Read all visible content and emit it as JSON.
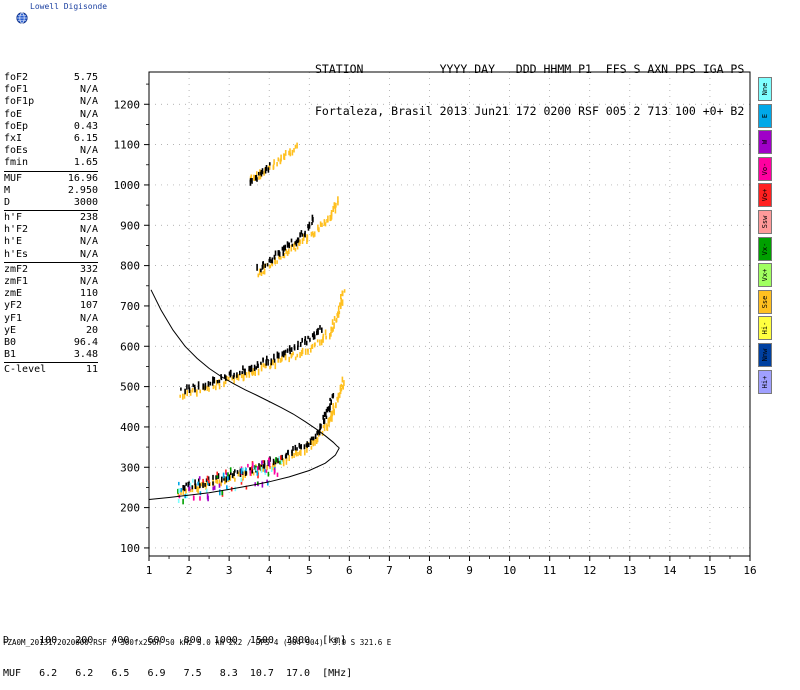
{
  "logo": {
    "text": "Lowell Digisonde"
  },
  "header": {
    "line1": "STATION           YYYY DAY   DDD HHMM P1  FFS S AXN PPS IGA PS",
    "line2": "Fortaleza, Brasil 2013 Jun21 172 0200 RSF 005 2 713 100 +0+ B2"
  },
  "params": [
    [
      {
        "label": "foF2",
        "value": "5.75"
      },
      {
        "label": "foF1",
        "value": "N/A"
      },
      {
        "label": "foF1p",
        "value": "N/A"
      },
      {
        "label": "foE",
        "value": "N/A"
      },
      {
        "label": "foEp",
        "value": "0.43"
      },
      {
        "label": "fxI",
        "value": "6.15"
      },
      {
        "label": "foEs",
        "value": "N/A"
      },
      {
        "label": "fmin",
        "value": "1.65"
      }
    ],
    [
      {
        "label": "MUF",
        "value": "16.96"
      },
      {
        "label": "M",
        "value": "2.950"
      },
      {
        "label": "D",
        "value": "3000"
      }
    ],
    [
      {
        "label": "h'F",
        "value": "238"
      },
      {
        "label": "h'F2",
        "value": "N/A"
      },
      {
        "label": "h'E",
        "value": "N/A"
      },
      {
        "label": "h'Es",
        "value": "N/A"
      }
    ],
    [
      {
        "label": "zmF2",
        "value": "332"
      },
      {
        "label": "zmF1",
        "value": "N/A"
      },
      {
        "label": "zmE",
        "value": "110"
      },
      {
        "label": "yF2",
        "value": "107"
      },
      {
        "label": "yF1",
        "value": "N/A"
      },
      {
        "label": "yE",
        "value": "20"
      },
      {
        "label": "B0",
        "value": "96.4"
      },
      {
        "label": "B1",
        "value": "3.48"
      }
    ],
    [
      {
        "label": "C-level",
        "value": "11"
      }
    ]
  ],
  "legend": [
    {
      "label": "Nne",
      "color": "#7fffff"
    },
    {
      "label": "E",
      "color": "#00a8e8"
    },
    {
      "label": "W",
      "color": "#a000c8"
    },
    {
      "label": "Vo-",
      "color": "#ff00a0"
    },
    {
      "label": "Vo+",
      "color": "#ff2020"
    },
    {
      "label": "Ssw",
      "color": "#ff9a9a"
    },
    {
      "label": "Vx-",
      "color": "#00a000"
    },
    {
      "label": "Vx+",
      "color": "#a0ff60"
    },
    {
      "label": "Sse",
      "color": "#ffc020"
    },
    {
      "label": "Hi-",
      "color": "#ffff40"
    },
    {
      "label": "Nnw",
      "color": "#0040a0"
    },
    {
      "label": "Hi+",
      "color": "#a0a0ff"
    }
  ],
  "table": {
    "line1": "D     100   200   400   600   800  1000  1500  3000  [km]",
    "line2": "MUF   6.2   6.2   6.5   6.9   7.5   8.3  10.7  17.0  [MHz]"
  },
  "footer": "FZA0M_2013172020000.RSF / 300fx256h 50 kHz 5.0 km 2x2 / DPS-4 (904-904)  3.9 S 321.6 E",
  "chart_data": {
    "type": "scatter",
    "xlim": [
      1,
      16
    ],
    "ylim": [
      80,
      1280
    ],
    "x_ticks": [
      1,
      2,
      3,
      4,
      5,
      6,
      7,
      8,
      9,
      10,
      11,
      12,
      13,
      14,
      15,
      16
    ],
    "y_ticks": [
      100,
      200,
      300,
      400,
      500,
      600,
      700,
      800,
      900,
      1000,
      1100,
      1200
    ],
    "grid": true,
    "profile": {
      "x": [
        1.05,
        1.3,
        1.6,
        1.9,
        2.2,
        2.5,
        2.8,
        3.1,
        3.4,
        3.7,
        4.0,
        4.3,
        4.6,
        4.9,
        5.2,
        5.4,
        5.6,
        5.7,
        5.75
      ],
      "y": [
        740,
        690,
        640,
        600,
        570,
        545,
        525,
        508,
        492,
        478,
        463,
        448,
        432,
        413,
        393,
        378,
        362,
        352,
        348
      ]
    },
    "trace": {
      "x": [
        1.0,
        1.5,
        2.0,
        2.5,
        3.0,
        3.5,
        4.0,
        4.5,
        5.0,
        5.4,
        5.65,
        5.75
      ],
      "y": [
        220,
        225,
        231,
        237,
        245,
        254,
        264,
        276,
        292,
        310,
        330,
        348
      ]
    },
    "echo_traces": [
      {
        "name": "F-O",
        "color": "#ffc020",
        "x": [
          1.75,
          2.0,
          2.4,
          2.8,
          3.2,
          3.6,
          4.0,
          4.4,
          4.8,
          5.1,
          5.3,
          5.45,
          5.55,
          5.65,
          5.75,
          5.85
        ],
        "y": [
          240,
          245,
          255,
          265,
          278,
          290,
          305,
          320,
          340,
          360,
          385,
          410,
          435,
          460,
          485,
          520
        ]
      },
      {
        "name": "F-X",
        "color": "#000000",
        "x": [
          1.8,
          2.2,
          2.6,
          3.0,
          3.4,
          3.8,
          4.2,
          4.6,
          5.0,
          5.2,
          5.35,
          5.5,
          5.6
        ],
        "y": [
          250,
          258,
          268,
          280,
          292,
          305,
          320,
          340,
          365,
          390,
          420,
          455,
          485
        ]
      },
      {
        "name": "2F-O",
        "color": "#ffc020",
        "x": [
          1.75,
          2.2,
          2.6,
          3.0,
          3.4,
          3.8,
          4.2,
          4.6,
          5.0,
          5.3,
          5.55,
          5.7,
          5.85
        ],
        "y": [
          480,
          490,
          500,
          515,
          530,
          545,
          560,
          575,
          595,
          615,
          640,
          680,
          740
        ]
      },
      {
        "name": "2F-X",
        "color": "#000000",
        "x": [
          1.8,
          2.4,
          3.0,
          3.6,
          4.2,
          4.6,
          5.0,
          5.3
        ],
        "y": [
          490,
          505,
          528,
          550,
          575,
          595,
          620,
          650
        ]
      },
      {
        "name": "3F-O",
        "color": "#ffc020",
        "x": [
          3.7,
          4.0,
          4.3,
          4.6,
          4.9,
          5.2,
          5.5,
          5.7
        ],
        "y": [
          780,
          800,
          825,
          845,
          865,
          890,
          915,
          970
        ]
      },
      {
        "name": "3F-X",
        "color": "#000000",
        "x": [
          3.7,
          4.0,
          4.3,
          4.6,
          4.9,
          5.1
        ],
        "y": [
          790,
          810,
          835,
          860,
          885,
          915
        ]
      },
      {
        "name": "4F-O",
        "color": "#ffc020",
        "x": [
          3.5,
          3.8,
          4.1,
          4.4,
          4.7
        ],
        "y": [
          1010,
          1030,
          1050,
          1075,
          1095
        ]
      },
      {
        "name": "4F-X",
        "color": "#000000",
        "x": [
          3.5,
          3.8,
          4.0
        ],
        "y": [
          1010,
          1030,
          1050
        ]
      }
    ]
  }
}
